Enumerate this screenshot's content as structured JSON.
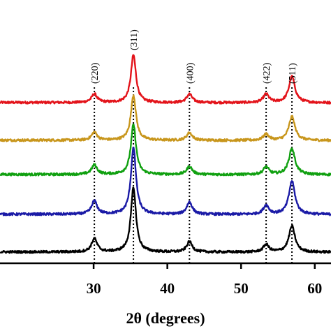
{
  "chart_data": {
    "type": "line",
    "xlabel": "2θ (degrees)",
    "ylabel": "",
    "title": "",
    "xlim": [
      17.3,
      62.2
    ],
    "x_ticks": [
      30,
      40,
      50,
      60
    ],
    "x_tick_labels": [
      "30",
      "40",
      "50",
      "60"
    ],
    "grid": false,
    "legend": "none",
    "peaks": [
      {
        "label": "(220)",
        "x": 30.1
      },
      {
        "label": "(311)",
        "x": 35.4
      },
      {
        "label": "(400)",
        "x": 43.0
      },
      {
        "label": "(422)",
        "x": 53.4
      },
      {
        "label": "(511)",
        "x": 56.9
      }
    ],
    "series": [
      {
        "color": "#e3141b",
        "offset": 4,
        "intensity": {
          "220": 0.18,
          "311": 1.0,
          "400": 0.18,
          "422": 0.18,
          "511": 0.55
        }
      },
      {
        "color": "#c8961c",
        "offset": 3,
        "intensity": {
          "220": 0.17,
          "311": 0.95,
          "400": 0.16,
          "422": 0.13,
          "511": 0.5
        }
      },
      {
        "color": "#10a010",
        "offset": 2,
        "intensity": {
          "220": 0.2,
          "311": 1.05,
          "400": 0.17,
          "422": 0.16,
          "511": 0.55
        }
      },
      {
        "color": "#1a1aa6",
        "offset": 1,
        "intensity": {
          "220": 0.28,
          "311": 1.4,
          "400": 0.26,
          "422": 0.19,
          "511": 0.7
        }
      },
      {
        "color": "#000000",
        "offset": 0,
        "intensity": {
          "220": 0.28,
          "311": 1.35,
          "400": 0.22,
          "422": 0.16,
          "511": 0.55
        }
      }
    ]
  }
}
